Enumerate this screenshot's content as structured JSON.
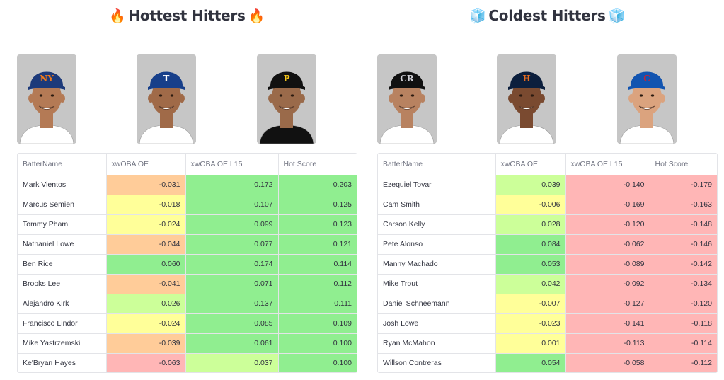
{
  "colors": {
    "green": "#90ee90",
    "light_green": "#ccff99",
    "yellow": "#ffff99",
    "orange": "#ffcc99",
    "red": "#ffb6b6"
  },
  "hot": {
    "title": "Hottest Hitters",
    "title_icon": "fire-icon",
    "title_glyph": "🔥",
    "photos": [
      {
        "team": "NY",
        "cap": "#1d3a7a",
        "logo": "#f07a1a",
        "skin": "#b47a55",
        "jersey": "#ffffff"
      },
      {
        "team": "T",
        "cap": "#173f8a",
        "logo": "#ffffff",
        "skin": "#a06a48",
        "jersey": "#ffffff"
      },
      {
        "team": "P",
        "cap": "#111111",
        "logo": "#f5c518",
        "skin": "#9a6a4a",
        "jersey": "#111111"
      }
    ],
    "columns": [
      "BatterName",
      "xwOBA OE",
      "xwOBA OE L15",
      "Hot Score"
    ],
    "rows": [
      {
        "name": "Mark Vientos",
        "oe": "-0.031",
        "l15": "0.172",
        "score": "0.203",
        "c": [
          "orange",
          "green",
          "green"
        ]
      },
      {
        "name": "Marcus Semien",
        "oe": "-0.018",
        "l15": "0.107",
        "score": "0.125",
        "c": [
          "yellow",
          "green",
          "green"
        ]
      },
      {
        "name": "Tommy Pham",
        "oe": "-0.024",
        "l15": "0.099",
        "score": "0.123",
        "c": [
          "yellow",
          "green",
          "green"
        ]
      },
      {
        "name": "Nathaniel Lowe",
        "oe": "-0.044",
        "l15": "0.077",
        "score": "0.121",
        "c": [
          "orange",
          "green",
          "green"
        ]
      },
      {
        "name": "Ben Rice",
        "oe": "0.060",
        "l15": "0.174",
        "score": "0.114",
        "c": [
          "green",
          "green",
          "green"
        ]
      },
      {
        "name": "Brooks Lee",
        "oe": "-0.041",
        "l15": "0.071",
        "score": "0.112",
        "c": [
          "orange",
          "green",
          "green"
        ]
      },
      {
        "name": "Alejandro Kirk",
        "oe": "0.026",
        "l15": "0.137",
        "score": "0.111",
        "c": [
          "light_green",
          "green",
          "green"
        ]
      },
      {
        "name": "Francisco Lindor",
        "oe": "-0.024",
        "l15": "0.085",
        "score": "0.109",
        "c": [
          "yellow",
          "green",
          "green"
        ]
      },
      {
        "name": "Mike Yastrzemski",
        "oe": "-0.039",
        "l15": "0.061",
        "score": "0.100",
        "c": [
          "orange",
          "green",
          "green"
        ]
      },
      {
        "name": "Ke'Bryan Hayes",
        "oe": "-0.063",
        "l15": "0.037",
        "score": "0.100",
        "c": [
          "red",
          "light_green",
          "green"
        ]
      }
    ]
  },
  "cold": {
    "title": "Coldest Hitters",
    "title_icon": "ice-cube-icon",
    "title_glyph": "🧊",
    "photos": [
      {
        "team": "CR",
        "cap": "#111111",
        "logo": "#cfcfd6",
        "skin": "#b88260",
        "jersey": "#ffffff"
      },
      {
        "team": "H",
        "cap": "#0c1f3d",
        "logo": "#eb6e1f",
        "skin": "#7a4a30",
        "jersey": "#ffffff"
      },
      {
        "team": "C",
        "cap": "#1254b0",
        "logo": "#d0202e",
        "skin": "#dba37e",
        "jersey": "#ffffff"
      }
    ],
    "columns": [
      "BatterName",
      "xwOBA OE",
      "xwOBA OE L15",
      "Hot Score"
    ],
    "rows": [
      {
        "name": "Ezequiel Tovar",
        "oe": "0.039",
        "l15": "-0.140",
        "score": "-0.179",
        "c": [
          "light_green",
          "red",
          "red"
        ]
      },
      {
        "name": "Cam Smith",
        "oe": "-0.006",
        "l15": "-0.169",
        "score": "-0.163",
        "c": [
          "yellow",
          "red",
          "red"
        ]
      },
      {
        "name": "Carson Kelly",
        "oe": "0.028",
        "l15": "-0.120",
        "score": "-0.148",
        "c": [
          "light_green",
          "red",
          "red"
        ]
      },
      {
        "name": "Pete Alonso",
        "oe": "0.084",
        "l15": "-0.062",
        "score": "-0.146",
        "c": [
          "green",
          "red",
          "red"
        ]
      },
      {
        "name": "Manny Machado",
        "oe": "0.053",
        "l15": "-0.089",
        "score": "-0.142",
        "c": [
          "green",
          "red",
          "red"
        ]
      },
      {
        "name": "Mike Trout",
        "oe": "0.042",
        "l15": "-0.092",
        "score": "-0.134",
        "c": [
          "light_green",
          "red",
          "red"
        ]
      },
      {
        "name": "Daniel Schneemann",
        "oe": "-0.007",
        "l15": "-0.127",
        "score": "-0.120",
        "c": [
          "yellow",
          "red",
          "red"
        ]
      },
      {
        "name": "Josh Lowe",
        "oe": "-0.023",
        "l15": "-0.141",
        "score": "-0.118",
        "c": [
          "yellow",
          "red",
          "red"
        ]
      },
      {
        "name": "Ryan McMahon",
        "oe": "0.001",
        "l15": "-0.113",
        "score": "-0.114",
        "c": [
          "yellow",
          "red",
          "red"
        ]
      },
      {
        "name": "Willson Contreras",
        "oe": "0.054",
        "l15": "-0.058",
        "score": "-0.112",
        "c": [
          "green",
          "red",
          "red"
        ]
      }
    ]
  }
}
